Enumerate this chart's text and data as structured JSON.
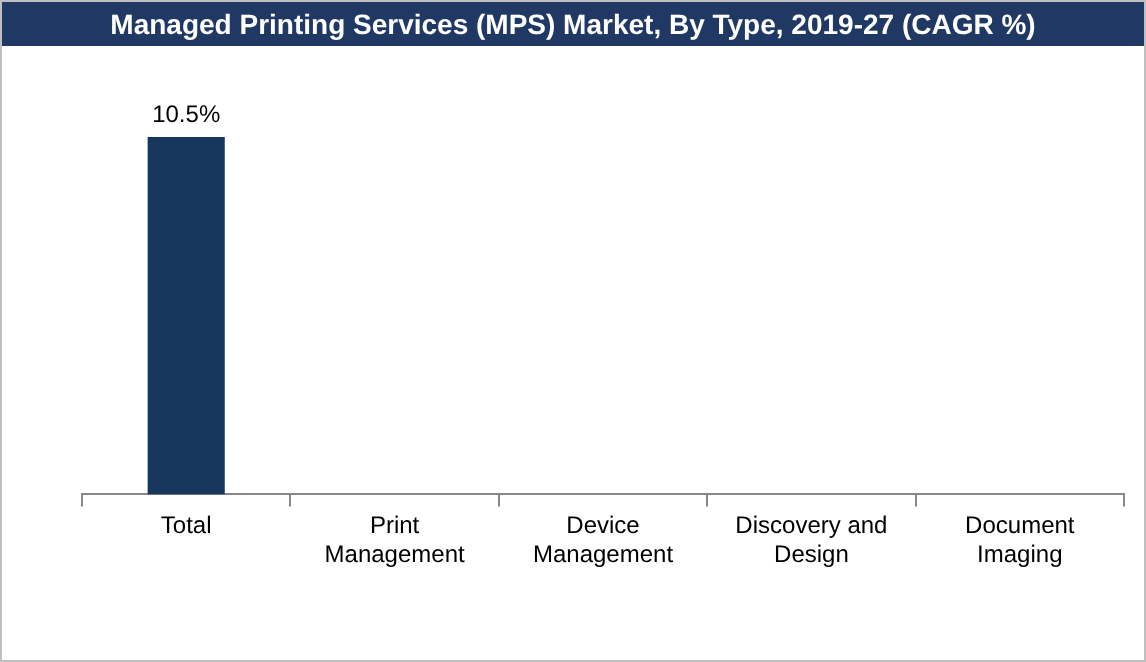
{
  "chart_data": {
    "type": "bar",
    "title": "Managed Printing Services (MPS) Market, By Type, 2019-27 (CAGR %)",
    "categories": [
      "Total",
      "Print Management",
      "Device Management",
      "Discovery and Design",
      "Document Imaging"
    ],
    "values": [
      10.5,
      null,
      null,
      null,
      null
    ],
    "value_labels": [
      "10.5%",
      null,
      null,
      null,
      null
    ],
    "color": "#17375e"
  }
}
